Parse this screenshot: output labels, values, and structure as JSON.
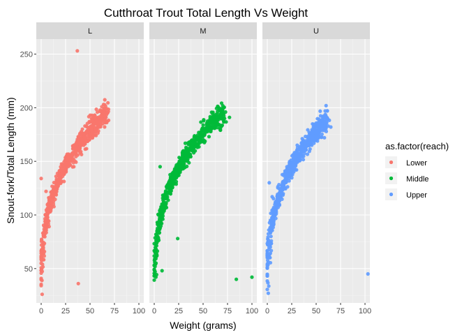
{
  "chart_data": {
    "type": "scatter",
    "title": "Cutthroat Trout Total Length Vs Weight",
    "xlabel": "Weight (grams)",
    "ylabel": "Snout-fork/Total Length (mm)",
    "xlim": [
      -5,
      105
    ],
    "ylim": [
      18,
      264
    ],
    "x_ticks": [
      0,
      25,
      50,
      75,
      100
    ],
    "y_ticks": [
      50,
      100,
      150,
      200,
      250
    ],
    "grid": true,
    "legend": {
      "title": "as.factor(reach)",
      "position": "right",
      "items": [
        {
          "label": "Lower",
          "color": "#F8766D"
        },
        {
          "label": "Middle",
          "color": "#00BA38"
        },
        {
          "label": "Upper",
          "color": "#619CFF"
        }
      ]
    },
    "panels": [
      {
        "strip": "L",
        "series": "Lower",
        "color": "#F8766D",
        "curve": {
          "max_weight": 68,
          "a": 1.6,
          "ymin": 24,
          "ymax": 196
        },
        "points": [
          {
            "x": 37,
            "y": 253
          },
          {
            "x": 38,
            "y": 36
          },
          {
            "x": 0,
            "y": 134
          },
          {
            "x": 62,
            "y": 196
          },
          {
            "x": 65,
            "y": 195
          },
          {
            "x": 58,
            "y": 185
          },
          {
            "x": 52,
            "y": 176
          },
          {
            "x": 5,
            "y": 122
          },
          {
            "x": 1,
            "y": 26
          }
        ]
      },
      {
        "strip": "M",
        "series": "Middle",
        "color": "#00BA38",
        "curve": {
          "max_weight": 72,
          "a": 1.7,
          "ymin": 23,
          "ymax": 197
        },
        "points": [
          {
            "x": 100,
            "y": 42
          },
          {
            "x": 84,
            "y": 40
          },
          {
            "x": 24,
            "y": 78
          },
          {
            "x": 8,
            "y": 48
          },
          {
            "x": 68,
            "y": 197
          },
          {
            "x": 73,
            "y": 196
          },
          {
            "x": 77,
            "y": 191
          },
          {
            "x": 6,
            "y": 145
          },
          {
            "x": 63,
            "y": 190
          }
        ]
      },
      {
        "strip": "U",
        "series": "Upper",
        "color": "#619CFF",
        "curve": {
          "max_weight": 62,
          "a": 1.5,
          "ymin": 25,
          "ymax": 190
        },
        "points": [
          {
            "x": 103,
            "y": 45
          },
          {
            "x": 60,
            "y": 192
          },
          {
            "x": 65,
            "y": 182
          },
          {
            "x": 52,
            "y": 186
          },
          {
            "x": 55,
            "y": 183
          },
          {
            "x": 2,
            "y": 130
          },
          {
            "x": 5,
            "y": 117
          },
          {
            "x": 1,
            "y": 27
          }
        ]
      }
    ]
  }
}
